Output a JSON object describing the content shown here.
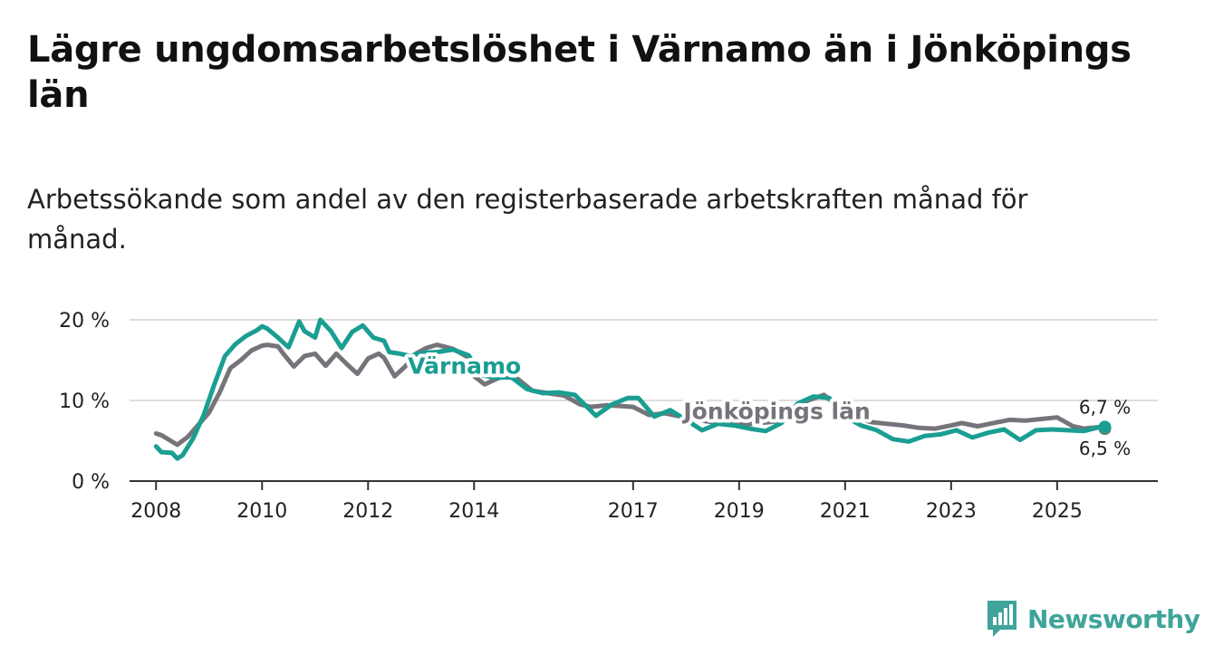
{
  "title": "Lägre ungdomsarbetslöshet i Värnamo än i Jönköpings län",
  "subtitle": "Arbetssökande som andel av den registerbaserade arbetskraften månad för månad.",
  "colors": {
    "varnamo": "#1a9e92",
    "jonkoping": "#76747a",
    "grid": "#dddddd",
    "axis": "#333333"
  },
  "brand": {
    "name": "Newsworthy",
    "icon": "bar-chart-logo-icon",
    "color": "#3fa49a"
  },
  "chart_data": {
    "type": "line",
    "title": "Lägre ungdomsarbetslöshet i Värnamo än i Jönköpings län",
    "subtitle": "Arbetssökande som andel av den registerbaserade arbetskraften månad för månad.",
    "xlabel": "",
    "ylabel": "",
    "xlim": [
      2007.5,
      2026.9
    ],
    "ylim": [
      0,
      20
    ],
    "y_ticks": [
      0,
      10,
      20
    ],
    "y_tick_labels": [
      "0 %",
      "10 %",
      "20 %"
    ],
    "x_ticks": [
      2008,
      2010,
      2012,
      2014,
      2017,
      2019,
      2021,
      2023,
      2025
    ],
    "x_tick_labels": [
      "2008",
      "2010",
      "2012",
      "2014",
      "2017",
      "2019",
      "2021",
      "2023",
      "2025"
    ],
    "grid": true,
    "series": [
      {
        "name": "Jönköpings län",
        "label": "Jönköpings län",
        "end_label": "6,5 %",
        "x": [
          2008.0,
          2008.1,
          2008.3,
          2008.4,
          2008.6,
          2008.8,
          2009.0,
          2009.2,
          2009.4,
          2009.6,
          2009.8,
          2010.0,
          2010.1,
          2010.3,
          2010.4,
          2010.6,
          2010.8,
          2011.0,
          2011.2,
          2011.4,
          2011.6,
          2011.8,
          2012.0,
          2012.2,
          2012.3,
          2012.5,
          2012.7,
          2012.9,
          2013.1,
          2013.3,
          2013.6,
          2013.9,
          2014.0,
          2014.2,
          2014.5,
          2014.8,
          2015.1,
          2015.4,
          2015.7,
          2016.0,
          2016.2,
          2016.5,
          2016.8,
          2017.0,
          2017.3,
          2017.6,
          2017.9,
          2018.2,
          2018.5,
          2018.8,
          2019.1,
          2019.4,
          2019.7,
          2020.0,
          2020.3,
          2020.6,
          2020.9,
          2021.2,
          2021.5,
          2021.8,
          2022.1,
          2022.4,
          2022.7,
          2023.0,
          2023.2,
          2023.5,
          2023.8,
          2024.1,
          2024.4,
          2024.7,
          2025.0,
          2025.3,
          2025.5,
          2025.8,
          2025.9
        ],
        "y": [
          5.9,
          5.7,
          4.9,
          4.5,
          5.5,
          7.0,
          8.5,
          11.0,
          14.0,
          15.0,
          16.2,
          16.8,
          16.9,
          16.7,
          15.8,
          14.2,
          15.5,
          15.8,
          14.3,
          15.8,
          14.5,
          13.3,
          15.2,
          15.8,
          15.3,
          13.0,
          14.2,
          15.8,
          16.5,
          16.9,
          16.4,
          15.3,
          13.0,
          12.0,
          12.9,
          12.8,
          11.2,
          10.9,
          10.6,
          9.5,
          9.2,
          9.4,
          9.3,
          9.2,
          8.2,
          8.4,
          8.0,
          7.6,
          7.3,
          7.2,
          7.0,
          7.2,
          7.4,
          8.6,
          10.0,
          10.7,
          9.1,
          7.8,
          7.3,
          7.1,
          6.9,
          6.6,
          6.5,
          6.9,
          7.2,
          6.8,
          7.2,
          7.6,
          7.5,
          7.7,
          7.9,
          6.8,
          6.5,
          6.7,
          6.5
        ]
      },
      {
        "name": "Värnamo",
        "label": "Värnamo",
        "end_label": "6,7 %",
        "x": [
          2008.0,
          2008.1,
          2008.3,
          2008.4,
          2008.5,
          2008.7,
          2008.9,
          2009.1,
          2009.3,
          2009.5,
          2009.7,
          2009.9,
          2010.0,
          2010.1,
          2010.3,
          2010.5,
          2010.7,
          2010.8,
          2011.0,
          2011.1,
          2011.3,
          2011.5,
          2011.7,
          2011.9,
          2012.1,
          2012.3,
          2012.4,
          2012.6,
          2012.8,
          2013.0,
          2013.3,
          2013.6,
          2013.9,
          2014.1,
          2014.4,
          2014.7,
          2015.0,
          2015.3,
          2015.6,
          2015.9,
          2016.1,
          2016.3,
          2016.6,
          2016.9,
          2017.1,
          2017.4,
          2017.7,
          2018.0,
          2018.3,
          2018.6,
          2018.9,
          2019.2,
          2019.5,
          2019.8,
          2020.1,
          2020.4,
          2020.7,
          2021.0,
          2021.3,
          2021.6,
          2021.9,
          2022.2,
          2022.5,
          2022.8,
          2023.1,
          2023.4,
          2023.7,
          2024.0,
          2024.3,
          2024.6,
          2024.9,
          2025.2,
          2025.5,
          2025.8,
          2025.9
        ],
        "y": [
          4.3,
          3.6,
          3.5,
          2.8,
          3.2,
          5.3,
          8.2,
          12.0,
          15.5,
          17.0,
          18.0,
          18.7,
          19.2,
          18.9,
          17.8,
          16.6,
          19.8,
          18.6,
          17.8,
          20.0,
          18.6,
          16.5,
          18.5,
          19.3,
          17.8,
          17.4,
          16.0,
          15.8,
          15.5,
          15.9,
          16.0,
          16.3,
          15.6,
          13.2,
          12.8,
          12.9,
          11.4,
          10.9,
          11.0,
          10.7,
          9.4,
          8.1,
          9.5,
          10.3,
          10.3,
          8.0,
          8.8,
          7.6,
          6.3,
          7.1,
          6.9,
          6.5,
          6.2,
          7.2,
          9.6,
          10.5,
          10.3,
          8.0,
          6.9,
          6.3,
          5.2,
          4.9,
          5.6,
          5.8,
          6.3,
          5.4,
          6.0,
          6.4,
          5.1,
          6.3,
          6.4,
          6.3,
          6.2,
          6.7,
          6.7
        ]
      }
    ]
  }
}
